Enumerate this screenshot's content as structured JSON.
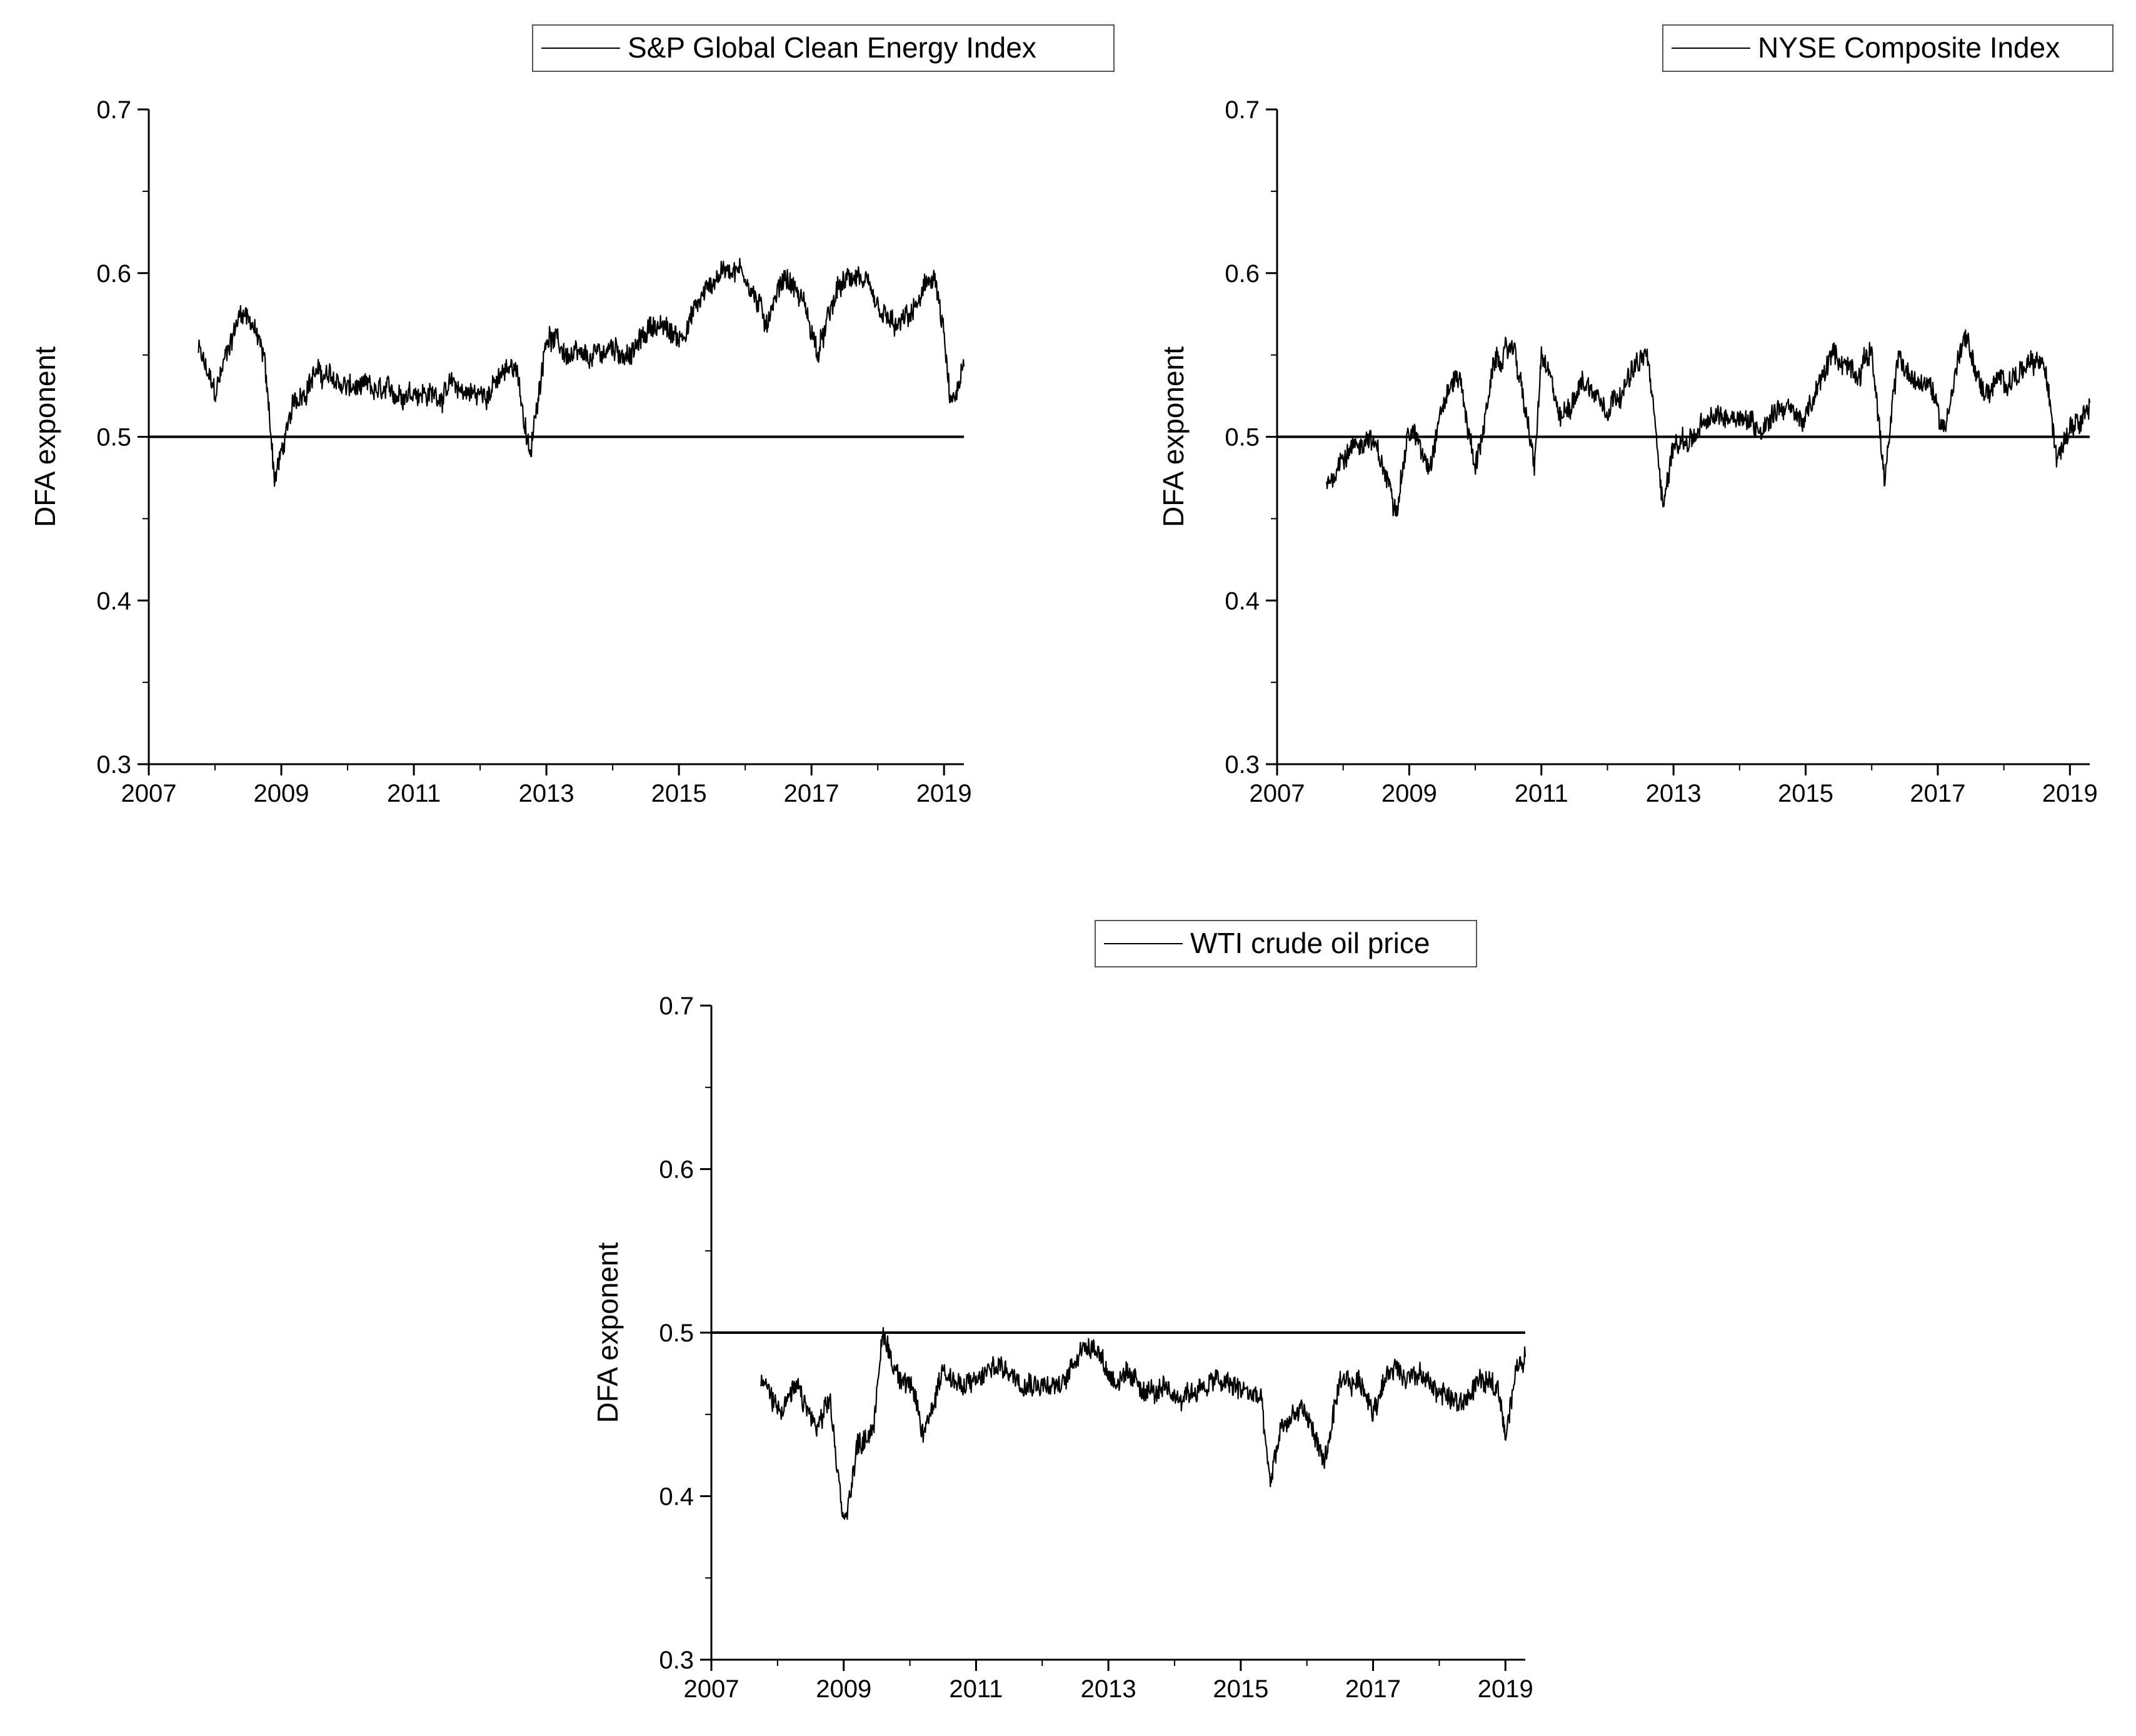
{
  "chart_data": [
    {
      "type": "line",
      "ylabel": "DFA exponent",
      "xlabel": "",
      "xlim": [
        2007,
        2019.3
      ],
      "ylim": [
        0.3,
        0.7
      ],
      "x_ticks": [
        "2007",
        "2009",
        "2011",
        "2013",
        "2015",
        "2017",
        "2019"
      ],
      "y_ticks": [
        "0.3",
        "0.4",
        "0.5",
        "0.6",
        "0.7"
      ],
      "reference_line": 0.5,
      "legend_position": "top-right",
      "series": [
        {
          "name": "S&P Global Clean Energy Index",
          "x": [
            2007.75,
            2008.0,
            2008.2,
            2008.4,
            2008.55,
            2008.75,
            2008.9,
            2009.0,
            2009.2,
            2009.5,
            2009.75,
            2010.0,
            2010.3,
            2010.6,
            2011.0,
            2011.3,
            2011.6,
            2012.0,
            2012.3,
            2012.55,
            2012.75,
            2013.0,
            2013.3,
            2013.6,
            2014.0,
            2014.3,
            2014.6,
            2015.0,
            2015.2,
            2015.5,
            2015.75,
            2016.0,
            2016.3,
            2016.6,
            2016.9,
            2017.1,
            2017.4,
            2017.7,
            2018.0,
            2018.3,
            2018.6,
            2018.85,
            2019.0,
            2019.1,
            2019.3
          ],
          "y": [
            0.553,
            0.525,
            0.555,
            0.578,
            0.572,
            0.545,
            0.475,
            0.49,
            0.52,
            0.54,
            0.535,
            0.53,
            0.528,
            0.525,
            0.53,
            0.525,
            0.53,
            0.525,
            0.535,
            0.545,
            0.485,
            0.565,
            0.55,
            0.545,
            0.555,
            0.55,
            0.57,
            0.56,
            0.575,
            0.595,
            0.605,
            0.6,
            0.57,
            0.6,
            0.58,
            0.55,
            0.59,
            0.6,
            0.575,
            0.565,
            0.58,
            0.6,
            0.56,
            0.515,
            0.54
          ]
        }
      ]
    },
    {
      "type": "line",
      "ylabel": "DFA exponent",
      "xlabel": "",
      "xlim": [
        2007,
        2019.3
      ],
      "ylim": [
        0.3,
        0.7
      ],
      "x_ticks": [
        "2007",
        "2009",
        "2011",
        "2013",
        "2015",
        "2017",
        "2019"
      ],
      "y_ticks": [
        "0.3",
        "0.4",
        "0.5",
        "0.6",
        "0.7"
      ],
      "reference_line": 0.5,
      "legend_position": "top-right",
      "series": [
        {
          "name": "NYSE Composite Index",
          "x": [
            2007.75,
            2008.0,
            2008.4,
            2008.8,
            2009.0,
            2009.3,
            2009.5,
            2009.75,
            2010.0,
            2010.3,
            2010.6,
            2010.9,
            2011.0,
            2011.3,
            2011.6,
            2012.0,
            2012.3,
            2012.6,
            2012.85,
            2013.0,
            2013.3,
            2013.6,
            2014.0,
            2014.3,
            2014.6,
            2015.0,
            2015.4,
            2015.8,
            2016.0,
            2016.2,
            2016.4,
            2016.6,
            2016.9,
            2017.1,
            2017.4,
            2017.7,
            2018.0,
            2018.3,
            2018.6,
            2018.8,
            2019.0,
            2019.3
          ],
          "y": [
            0.47,
            0.49,
            0.5,
            0.46,
            0.505,
            0.485,
            0.52,
            0.54,
            0.48,
            0.545,
            0.555,
            0.48,
            0.55,
            0.51,
            0.535,
            0.52,
            0.535,
            0.55,
            0.46,
            0.495,
            0.5,
            0.51,
            0.515,
            0.505,
            0.52,
            0.51,
            0.55,
            0.54,
            0.555,
            0.47,
            0.55,
            0.535,
            0.53,
            0.505,
            0.565,
            0.525,
            0.535,
            0.54,
            0.545,
            0.49,
            0.51,
            0.52
          ]
        }
      ]
    },
    {
      "type": "line",
      "ylabel": "DFA exponent",
      "xlabel": "",
      "xlim": [
        2007,
        2019.3
      ],
      "ylim": [
        0.3,
        0.7
      ],
      "x_ticks": [
        "2007",
        "2009",
        "2011",
        "2013",
        "2015",
        "2017",
        "2019"
      ],
      "y_ticks": [
        "0.3",
        "0.4",
        "0.5",
        "0.6",
        "0.7"
      ],
      "reference_line": 0.5,
      "legend_position": "top-right",
      "series": [
        {
          "name": "WTI crude oil price",
          "x": [
            2007.75,
            2008.0,
            2008.3,
            2008.6,
            2008.8,
            2009.0,
            2009.2,
            2009.45,
            2009.6,
            2009.75,
            2010.0,
            2010.2,
            2010.5,
            2010.8,
            2011.0,
            2011.3,
            2011.6,
            2012.0,
            2012.3,
            2012.55,
            2012.8,
            2013.0,
            2013.3,
            2013.6,
            2014.0,
            2014.3,
            2014.6,
            2015.0,
            2015.3,
            2015.45,
            2015.6,
            2015.9,
            2016.1,
            2016.25,
            2016.5,
            2016.8,
            2017.0,
            2017.3,
            2017.6,
            2018.0,
            2018.3,
            2018.6,
            2018.9,
            2019.0,
            2019.15,
            2019.3
          ],
          "y": [
            0.47,
            0.455,
            0.465,
            0.44,
            0.455,
            0.38,
            0.43,
            0.445,
            0.5,
            0.48,
            0.47,
            0.435,
            0.48,
            0.465,
            0.47,
            0.48,
            0.475,
            0.47,
            0.465,
            0.49,
            0.495,
            0.475,
            0.47,
            0.465,
            0.46,
            0.465,
            0.47,
            0.465,
            0.46,
            0.405,
            0.44,
            0.455,
            0.44,
            0.42,
            0.465,
            0.47,
            0.455,
            0.48,
            0.475,
            0.465,
            0.455,
            0.47,
            0.465,
            0.44,
            0.475,
            0.485
          ]
        }
      ]
    }
  ]
}
